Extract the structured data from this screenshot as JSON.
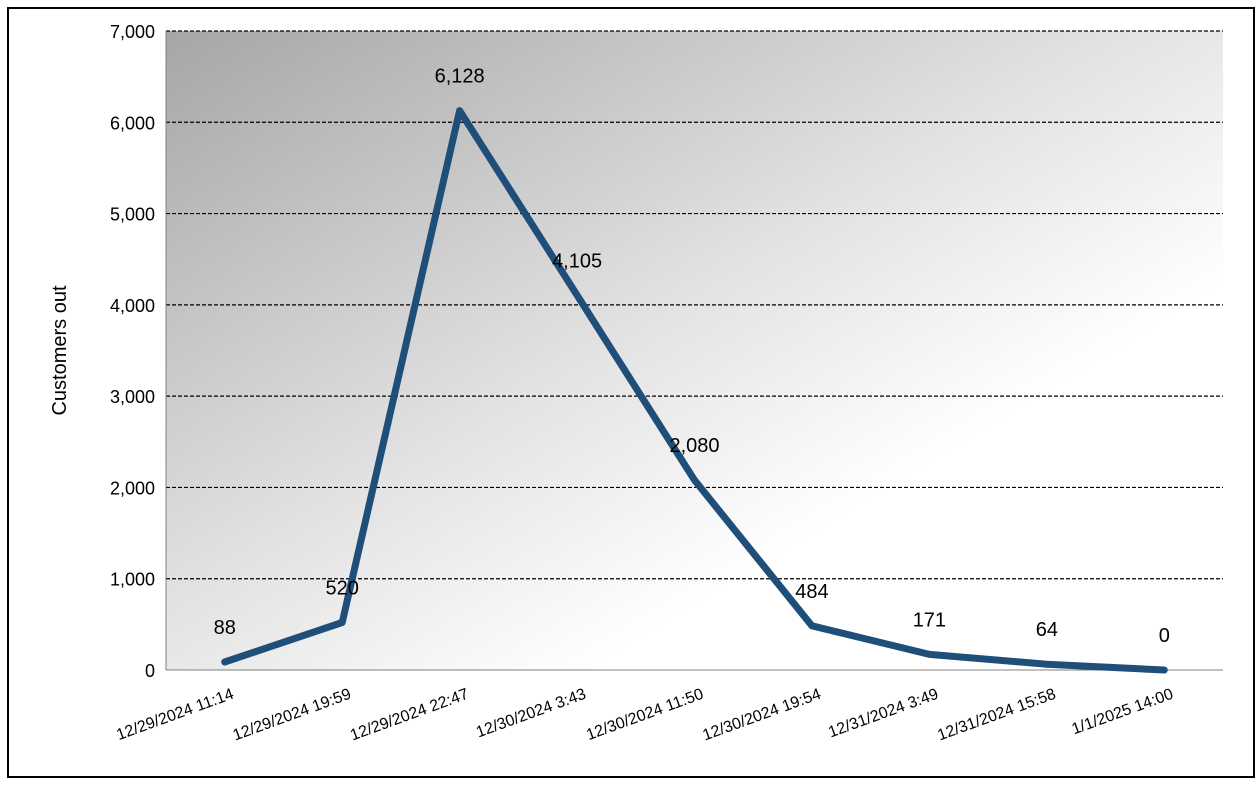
{
  "chart_data": {
    "type": "line",
    "title": "",
    "xlabel": "",
    "ylabel": "Customers out",
    "categories": [
      "12/29/2024 11:14",
      "12/29/2024 19:59",
      "12/29/2024 22:47",
      "12/30/2024 3:43",
      "12/30/2024 11:50",
      "12/30/2024 19:54",
      "12/31/2024 3:49",
      "12/31/2024 15:58",
      "1/1/2025 14:00"
    ],
    "values": [
      88,
      520,
      6128,
      4105,
      2080,
      484,
      171,
      64,
      0
    ],
    "value_labels": [
      "88",
      "520",
      "6,128",
      "4,105",
      "2,080",
      "484",
      "171",
      "64",
      "0"
    ],
    "y_ticks": [
      0,
      1000,
      2000,
      3000,
      4000,
      5000,
      6000,
      7000
    ],
    "y_tick_labels": [
      "0",
      "1,000",
      "2,000",
      "3,000",
      "4,000",
      "5,000",
      "6,000",
      "7,000"
    ],
    "ylim": [
      0,
      7000
    ],
    "grid": "horizontal dashed",
    "legend": "none",
    "colors": {
      "line": "#1F4E79",
      "plot_gradient_dark": "#A6A6A6",
      "plot_gradient_light": "#FFFFFF",
      "gridline": "#000000"
    }
  }
}
